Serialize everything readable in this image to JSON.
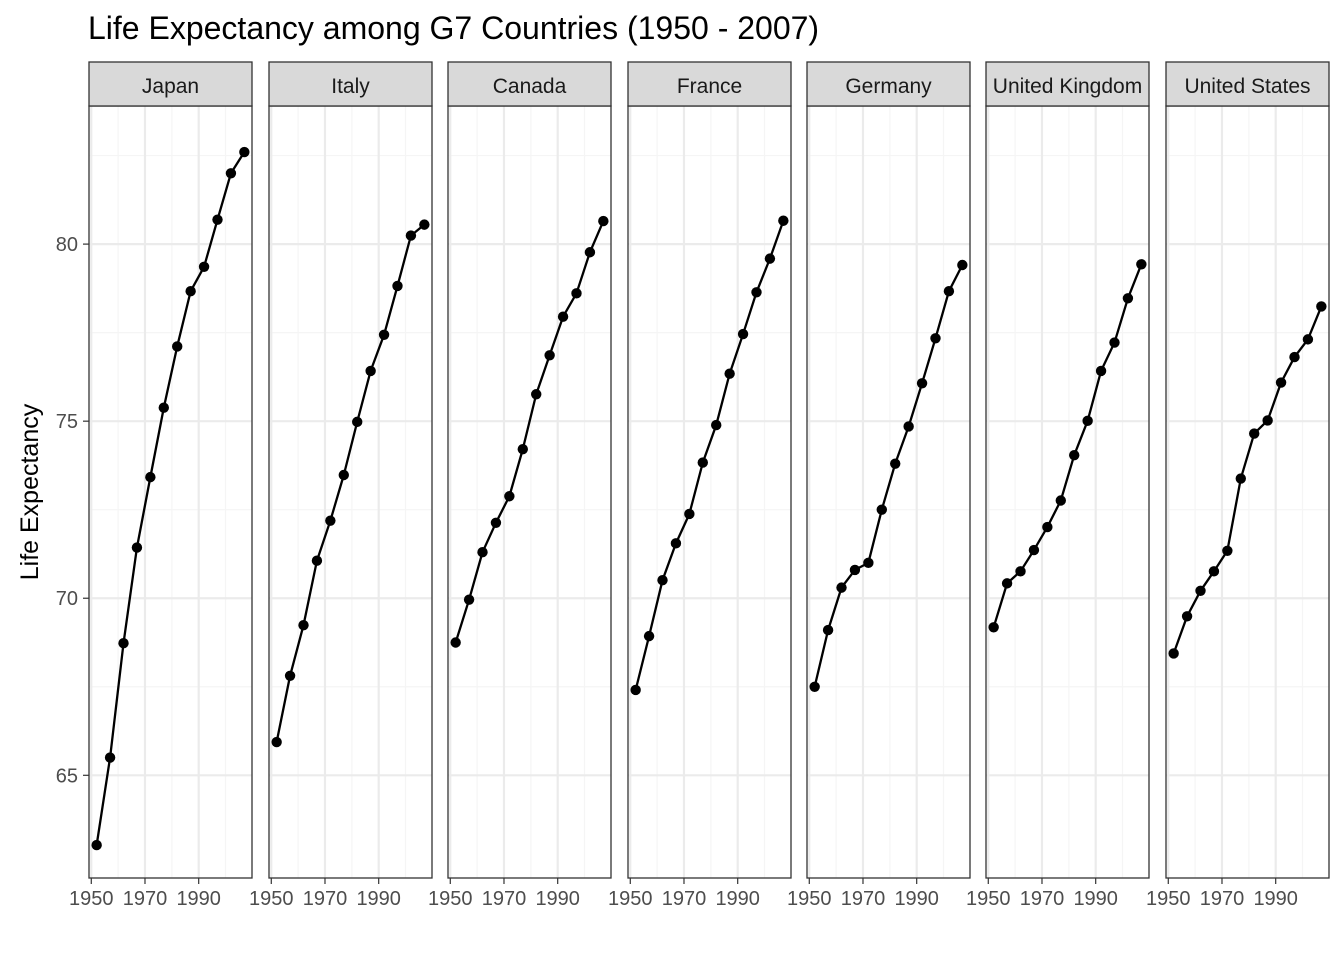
{
  "chart_data": {
    "type": "line",
    "title": "Life Expectancy among G7 Countries (1950 - 2007)",
    "xlabel": "",
    "ylabel": "Life Expectancy",
    "facet": "country",
    "x": [
      1952,
      1957,
      1962,
      1967,
      1972,
      1977,
      1982,
      1987,
      1992,
      1997,
      2002,
      2007
    ],
    "xlim": [
      1949.15,
      2009.85
    ],
    "ylim": [
      62.1,
      83.9
    ],
    "x_ticks": [
      1950,
      1970,
      1990
    ],
    "x_tick_labels": [
      "1950",
      "1970",
      "1990"
    ],
    "y_ticks": [
      65,
      70,
      75,
      80
    ],
    "y_tick_labels": [
      "65",
      "70",
      "75",
      "80"
    ],
    "grid": true,
    "theme": "bw",
    "series": [
      {
        "name": "Japan",
        "values": [
          63.03,
          65.5,
          68.73,
          71.43,
          73.42,
          75.38,
          77.11,
          78.67,
          79.36,
          80.69,
          82.0,
          82.6
        ]
      },
      {
        "name": "Italy",
        "values": [
          65.94,
          67.81,
          69.24,
          71.06,
          72.19,
          73.48,
          74.98,
          76.42,
          77.44,
          78.82,
          80.24,
          80.55
        ]
      },
      {
        "name": "Canada",
        "values": [
          68.75,
          69.96,
          71.3,
          72.13,
          72.88,
          74.21,
          75.76,
          76.86,
          77.95,
          78.61,
          79.77,
          80.65
        ]
      },
      {
        "name": "France",
        "values": [
          67.41,
          68.93,
          70.51,
          71.55,
          72.38,
          73.83,
          74.89,
          76.34,
          77.46,
          78.64,
          79.59,
          80.66
        ]
      },
      {
        "name": "Germany",
        "values": [
          67.5,
          69.1,
          70.3,
          70.8,
          71.0,
          72.5,
          73.8,
          74.85,
          76.07,
          77.34,
          78.67,
          79.41
        ]
      },
      {
        "name": "United Kingdom",
        "values": [
          69.18,
          70.42,
          70.76,
          71.36,
          72.01,
          72.76,
          74.04,
          75.01,
          76.42,
          77.22,
          78.47,
          79.43
        ]
      },
      {
        "name": "United States",
        "values": [
          68.44,
          69.49,
          70.21,
          70.76,
          71.34,
          73.38,
          74.65,
          75.02,
          76.09,
          76.81,
          77.31,
          78.24
        ]
      }
    ],
    "colors": {
      "line": "#000000",
      "point": "#000000",
      "strip_fill": "#d9d9d9",
      "panel_border": "#333333",
      "grid_major": "#ebebeb",
      "grid_minor": "#f5f5f5",
      "tick_text": "#4d4d4d"
    }
  }
}
